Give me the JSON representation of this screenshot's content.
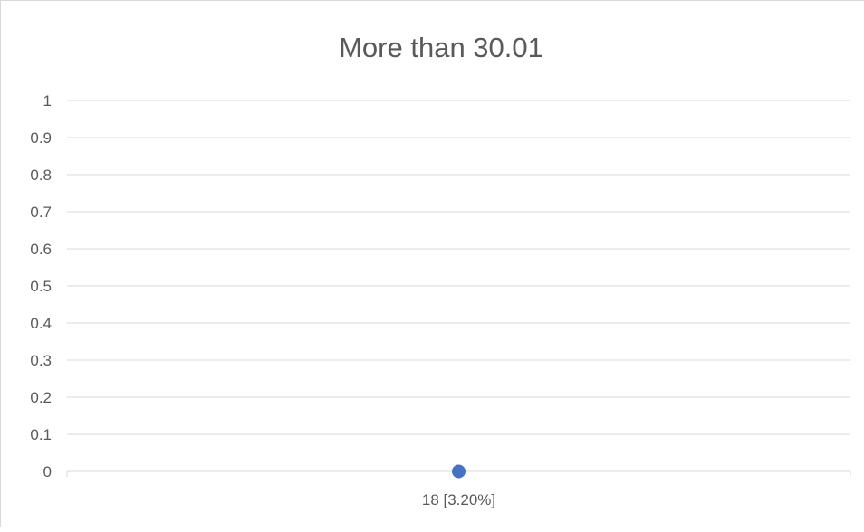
{
  "chart_data": {
    "type": "scatter",
    "title": "More than 30.01",
    "xlabel": "",
    "ylabel": "",
    "categories": [
      "18 [3.20%]"
    ],
    "series": [
      {
        "values": [
          0
        ],
        "color": "#4472c4"
      }
    ],
    "y_ticks": [
      "0",
      "0.1",
      "0.2",
      "0.3",
      "0.4",
      "0.5",
      "0.6",
      "0.7",
      "0.8",
      "0.9",
      "1"
    ],
    "ylim": [
      0,
      1
    ],
    "grid": true,
    "legend": "none",
    "colors": {
      "gridline": "#d9d9d9",
      "axis_text": "#595959",
      "title_text": "#595959"
    }
  }
}
